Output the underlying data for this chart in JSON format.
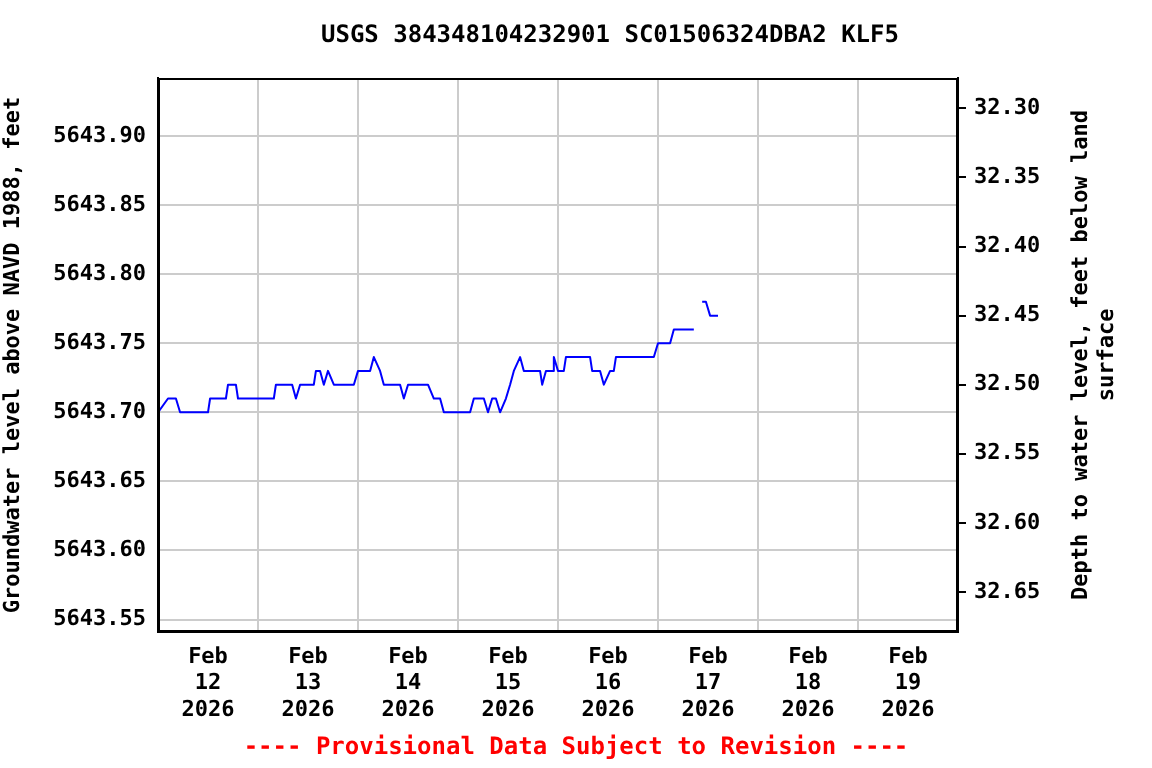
{
  "chart_data": {
    "type": "line",
    "title": "USGS 384348104232901 SC01506324DBA2 KLF5",
    "xlabel": null,
    "ylabel": "Groundwater level above NAVD 1988, feet",
    "y2label": "Depth to water level, feet below land surface",
    "annotations": [
      "---- Provisional Data Subject to Revision ----"
    ],
    "x": [
      "2026-02-12T00:00",
      "2026-02-12T02:24",
      "2026-02-12T04:18",
      "2026-02-12T05:18",
      "2026-02-12T12:00",
      "2026-02-12T12:30",
      "2026-02-12T16:18",
      "2026-02-12T16:48",
      "2026-02-12T18:42",
      "2026-02-12T19:12",
      "2026-02-13T03:48",
      "2026-02-13T04:18",
      "2026-02-13T08:12",
      "2026-02-13T09:06",
      "2026-02-13T10:06",
      "2026-02-13T13:24",
      "2026-02-13T13:54",
      "2026-02-13T14:54",
      "2026-02-13T15:48",
      "2026-02-13T16:48",
      "2026-02-13T18:12",
      "2026-02-13T23:00",
      "2026-02-14T00:00",
      "2026-02-14T02:54",
      "2026-02-14T03:48",
      "2026-02-14T05:18",
      "2026-02-14T06:12",
      "2026-02-14T10:06",
      "2026-02-14T11:00",
      "2026-02-14T12:00",
      "2026-02-14T16:48",
      "2026-02-14T18:12",
      "2026-02-14T19:42",
      "2026-02-14T20:36",
      "2026-02-15T02:54",
      "2026-02-15T03:48",
      "2026-02-15T06:12",
      "2026-02-15T07:12",
      "2026-02-15T08:12",
      "2026-02-15T09:06",
      "2026-02-15T10:06",
      "2026-02-15T11:30",
      "2026-02-15T12:30",
      "2026-02-15T13:24",
      "2026-02-15T14:54",
      "2026-02-15T15:48",
      "2026-02-15T19:42",
      "2026-02-15T20:12",
      "2026-02-15T21:06",
      "2026-02-15T22:36",
      "2026-02-15T23:00",
      "2026-02-16T00:00",
      "2026-02-16T01:24",
      "2026-02-16T01:54",
      "2026-02-16T07:42",
      "2026-02-16T08:12",
      "2026-02-16T10:06",
      "2026-02-16T11:00",
      "2026-02-16T12:30",
      "2026-02-16T13:24",
      "2026-02-16T13:54",
      "2026-02-16T23:00",
      "2026-02-17T00:00",
      "2026-02-17T02:54",
      "2026-02-17T03:48",
      "2026-02-17T08:36",
      "2026-02-17T09:36",
      "2026-02-17T10:36",
      "2026-02-17T11:30",
      "2026-02-17T12:30",
      "2026-02-17T14:24"
    ],
    "series": [
      {
        "color": "#0000ff",
        "values": [
          5643.7,
          5643.71,
          5643.71,
          5643.7,
          5643.7,
          5643.71,
          5643.71,
          5643.72,
          5643.72,
          5643.71,
          5643.71,
          5643.72,
          5643.72,
          5643.71,
          5643.72,
          5643.72,
          5643.73,
          5643.73,
          5643.72,
          5643.73,
          5643.72,
          5643.72,
          5643.73,
          5643.73,
          5643.74,
          5643.73,
          5643.72,
          5643.72,
          5643.71,
          5643.72,
          5643.72,
          5643.71,
          5643.71,
          5643.7,
          5643.7,
          5643.71,
          5643.71,
          5643.7,
          5643.71,
          5643.71,
          5643.7,
          5643.71,
          5643.72,
          5643.73,
          5643.74,
          5643.73,
          5643.73,
          5643.72,
          5643.73,
          5643.73,
          5643.74,
          5643.73,
          5643.73,
          5643.74,
          5643.74,
          5643.73,
          5643.73,
          5643.72,
          5643.73,
          5643.73,
          5643.74,
          5643.74,
          5643.75,
          5643.75,
          5643.76,
          5643.76,
          null,
          5643.78,
          5643.78,
          5643.77,
          5643.77
        ]
      }
    ],
    "xlim": [
      "2026-02-12T00:00",
      "2026-02-20T00:00"
    ],
    "xticks": [
      {
        "value": "2026-02-12T12:00",
        "label": "Feb 12 2026"
      },
      {
        "value": "2026-02-13T12:00",
        "label": "Feb 13 2026"
      },
      {
        "value": "2026-02-14T12:00",
        "label": "Feb 14 2026"
      },
      {
        "value": "2026-02-15T12:00",
        "label": "Feb 15 2026"
      },
      {
        "value": "2026-02-16T12:00",
        "label": "Feb 16 2026"
      },
      {
        "value": "2026-02-17T12:00",
        "label": "Feb 17 2026"
      },
      {
        "value": "2026-02-18T12:00",
        "label": "Feb 18 2026"
      },
      {
        "value": "2026-02-19T12:00",
        "label": "Feb 19 2026"
      },
      {
        "value": "2026-02-13T00:00",
        "label": null
      },
      {
        "value": "2026-02-14T00:00",
        "label": null
      },
      {
        "value": "2026-02-15T00:00",
        "label": null
      },
      {
        "value": "2026-02-16T00:00",
        "label": null
      },
      {
        "value": "2026-02-17T00:00",
        "label": null
      },
      {
        "value": "2026-02-18T00:00",
        "label": null
      },
      {
        "value": "2026-02-19T00:00",
        "label": null
      }
    ],
    "ylim": [
      5643.541,
      5643.942
    ],
    "yticks": [
      {
        "value": 5643.55,
        "label": "5643.55"
      },
      {
        "value": 5643.6,
        "label": "5643.60"
      },
      {
        "value": 5643.65,
        "label": "5643.65"
      },
      {
        "value": 5643.7,
        "label": "5643.70"
      },
      {
        "value": 5643.75,
        "label": "5643.75"
      },
      {
        "value": 5643.8,
        "label": "5643.80"
      },
      {
        "value": 5643.85,
        "label": "5643.85"
      },
      {
        "value": 5643.9,
        "label": "5643.90"
      }
    ],
    "y2lim": [
      32.679,
      32.278
    ],
    "y2ticks": [
      {
        "value": 32.3,
        "label": "32.30"
      },
      {
        "value": 32.35,
        "label": "32.35"
      },
      {
        "value": 32.4,
        "label": "32.40"
      },
      {
        "value": 32.45,
        "label": "32.45"
      },
      {
        "value": 32.5,
        "label": "32.50"
      },
      {
        "value": 32.55,
        "label": "32.55"
      },
      {
        "value": 32.6,
        "label": "32.60"
      },
      {
        "value": 32.65,
        "label": "32.65"
      }
    ],
    "grid": true,
    "legend": false,
    "marker": "none",
    "line_style": "solid"
  }
}
